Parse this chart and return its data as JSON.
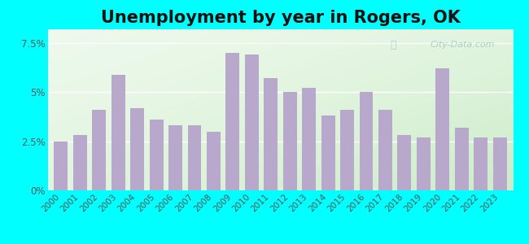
{
  "title": "Unemployment by year in Rogers, OK",
  "years": [
    2000,
    2001,
    2002,
    2003,
    2004,
    2005,
    2006,
    2007,
    2008,
    2009,
    2010,
    2011,
    2012,
    2013,
    2014,
    2015,
    2016,
    2017,
    2018,
    2019,
    2020,
    2021,
    2022,
    2023
  ],
  "values": [
    2.5,
    2.8,
    4.1,
    5.9,
    4.2,
    3.6,
    3.3,
    3.3,
    3.0,
    7.0,
    6.9,
    5.7,
    5.0,
    5.2,
    3.8,
    4.1,
    5.0,
    4.1,
    2.8,
    2.7,
    6.2,
    3.2,
    2.7,
    2.7
  ],
  "bar_color": "#b8a8cc",
  "yticks": [
    0.0,
    2.5,
    5.0,
    7.5
  ],
  "ytick_labels": [
    "0%",
    "2.5%",
    "5%",
    "7.5%"
  ],
  "ylim": [
    0,
    8.2
  ],
  "title_fontsize": 15,
  "bg_outer": "#00FFFF",
  "watermark": "City-Data.com",
  "watermark_color": "#a8c8c8",
  "tick_label_color": "#555555",
  "grid_color": "#ffffff",
  "title_color": "#111111"
}
